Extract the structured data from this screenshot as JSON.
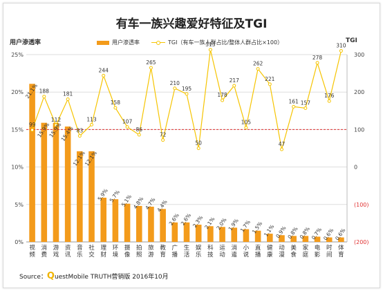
{
  "chart_data": {
    "type": "bar",
    "title": "有车一族兴趣爱好特征及TGI",
    "ylabel_left": "用户渗透率",
    "ylabel_right": "TGI",
    "legend_bar": "用户渗透率",
    "legend_line": "TGI（有车一族人群占比/整体人群占比×100）",
    "categories": [
      "视频",
      "消费",
      "游戏",
      "资讯",
      "音乐",
      "社交",
      "理财",
      "环境",
      "摄像",
      "拍照",
      "旅游",
      "教育",
      "广播",
      "生活",
      "娱乐",
      "科技",
      "运动",
      "消遣",
      "小说",
      "直播",
      "健康",
      "动漫",
      "美食",
      "家庭",
      "电影",
      "时间",
      "体育"
    ],
    "series": [
      {
        "name": "用户渗透率",
        "values": [
          21.1,
          15.9,
          15.9,
          15.4,
          12.1,
          12.1,
          5.9,
          5.7,
          5.1,
          4.8,
          4.7,
          4.4,
          2.6,
          2.6,
          2.3,
          2.1,
          2.0,
          1.9,
          1.7,
          1.5,
          1.1,
          0.9,
          0.8,
          0.8,
          0.7,
          0.6,
          0.6
        ],
        "labels": [
          "21.1%",
          "15.9%",
          "15.9%",
          "15.4%",
          "12.1%",
          "12.1%",
          "5.9%",
          "5.7%",
          "5.1%",
          "4.8%",
          "4.7%",
          "4.4%",
          "2.6%",
          "2.6%",
          "2.3%",
          "2.1%",
          "2.0%",
          "1.9%",
          "1.7%",
          "1.5%",
          "1.1%",
          "0.9%",
          "0.8%",
          "0.8%",
          "0.7%",
          "0.6%",
          "0.6%"
        ]
      },
      {
        "name": "TGI",
        "values": [
          99,
          188,
          112,
          181,
          83,
          113,
          244,
          158,
          107,
          86,
          265,
          72,
          210,
          195,
          50,
          313,
          178,
          217,
          105,
          262,
          221,
          47,
          161,
          157,
          278,
          176,
          310
        ]
      }
    ],
    "ylim_left": [
      0,
      25
    ],
    "yticks_left": [
      "0%",
      "5%",
      "10%",
      "15%",
      "20%",
      "25%"
    ],
    "ylim_right": [
      -200,
      300
    ],
    "yticks_right": [
      "300",
      "200",
      "100",
      "0",
      "(100)",
      "(200)"
    ],
    "reference_line": 100,
    "colors": {
      "bar": "#f39b1b",
      "line": "#f6c400",
      "reference": "#e03030",
      "negative_tick": "#e03030"
    }
  },
  "source": {
    "prefix": "Source：",
    "q": "Q",
    "rest": "uestMobile TRUTH营销版 2016年10月"
  }
}
